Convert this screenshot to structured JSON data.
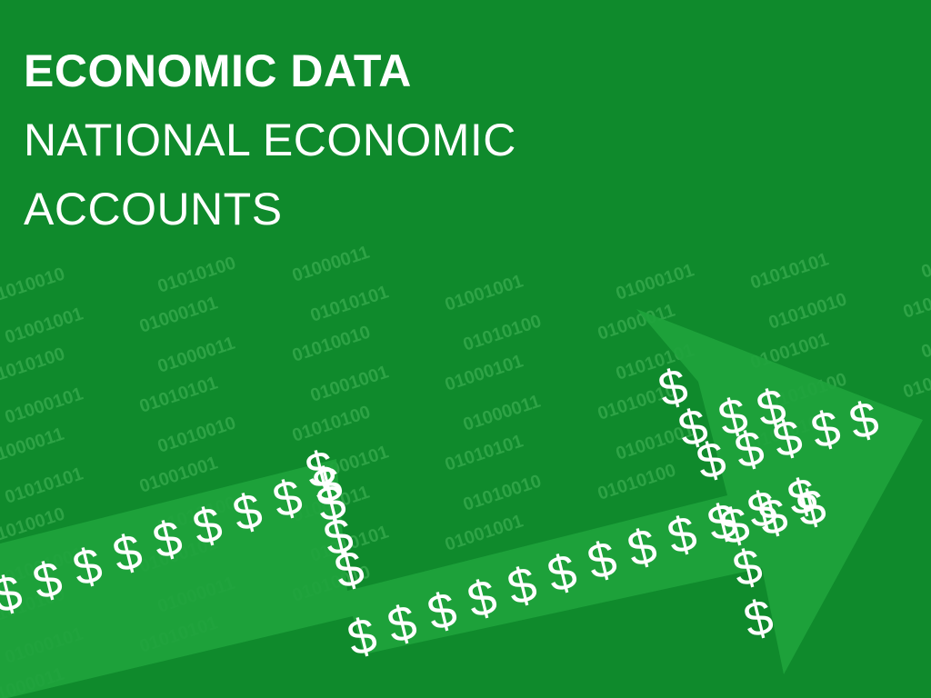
{
  "title": {
    "main": "ECONOMIC DATA",
    "sub_line1": "NATIONAL ECONOMIC",
    "sub_line2": "ACCOUNTS"
  },
  "colors": {
    "background": "#0f8a2c",
    "arrow": "#1fa33c",
    "binary_text": "#34a84c",
    "title_text": "#ffffff",
    "dollar_text": "#ffffff"
  },
  "decoration": {
    "binary_codes": [
      "01000101",
      "01000011",
      "01010101",
      "01010010",
      "01001001",
      "01010100"
    ],
    "dollar_sign": "$"
  }
}
